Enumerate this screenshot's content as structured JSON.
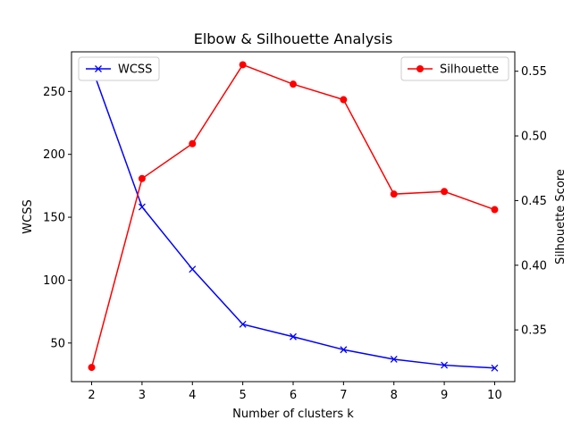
{
  "chart_data": {
    "type": "line",
    "title": "Elbow & Silhouette Analysis",
    "xlabel": "Number of clusters k",
    "ylabel_left": "WCSS",
    "ylabel_right": "Silhouette Score",
    "x": [
      2,
      3,
      4,
      5,
      6,
      7,
      8,
      9,
      10
    ],
    "xlim": [
      1.6,
      10.4
    ],
    "ylim_left": [
      19.3,
      281.5
    ],
    "ylim_right": [
      0.31,
      0.565
    ],
    "x_ticks": [
      "2",
      "3",
      "4",
      "5",
      "6",
      "7",
      "8",
      "9",
      "10"
    ],
    "y_ticks_left": [
      50,
      100,
      150,
      200,
      250
    ],
    "y_ticks_right": [
      0.35,
      0.4,
      0.45,
      0.5,
      0.55
    ],
    "y_tick_labels_left": [
      "50",
      "100",
      "150",
      "200",
      "250"
    ],
    "y_tick_labels_right": [
      "0.35",
      "0.40",
      "0.45",
      "0.50",
      "0.55"
    ],
    "grid": false,
    "series": [
      {
        "name": "WCSS",
        "axis": "left",
        "color": "#0000ff",
        "marker": "x",
        "values": [
          269.5,
          158.2,
          108.7,
          64.9,
          55.0,
          44.7,
          37.1,
          32.4,
          30.1
        ]
      },
      {
        "name": "Silhouette",
        "axis": "right",
        "color": "#ff0000",
        "marker": "o",
        "values": [
          0.321,
          0.467,
          0.494,
          0.555,
          0.54,
          0.528,
          0.455,
          0.457,
          0.443
        ]
      }
    ],
    "legends": [
      {
        "series": "WCSS",
        "placement": "upper-left"
      },
      {
        "series": "Silhouette",
        "placement": "upper-right"
      }
    ]
  }
}
